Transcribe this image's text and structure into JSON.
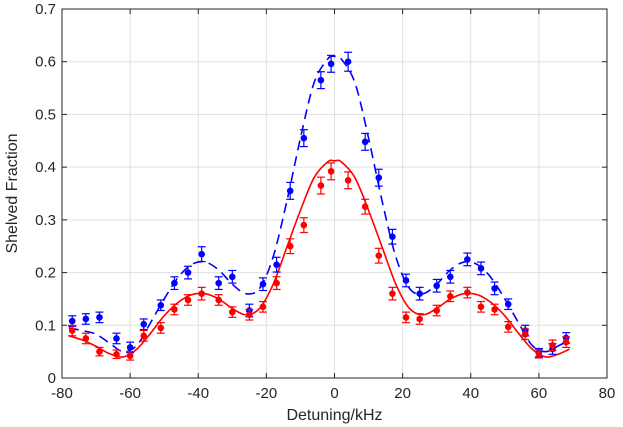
{
  "chart_data": {
    "type": "scatter",
    "title": "",
    "xlabel": "Detuning/kHz",
    "ylabel": "Shelved Fraction",
    "xlim": [
      -80,
      80
    ],
    "ylim": [
      0,
      0.7
    ],
    "xticks": [
      -80,
      -60,
      -40,
      -20,
      0,
      20,
      40,
      60,
      80
    ],
    "yticks": [
      0,
      0.1,
      0.2,
      0.3,
      0.4,
      0.5,
      0.6,
      0.7
    ],
    "xtick_labels": [
      "-80",
      "-60",
      "-40",
      "-20",
      "0",
      "20",
      "40",
      "60",
      "80"
    ],
    "ytick_labels": [
      "0",
      "0.1",
      "0.2",
      "0.3",
      "0.4",
      "0.5",
      "0.6",
      "0.7"
    ],
    "grid": true,
    "legend": "none",
    "series": [
      {
        "color": "#0000ff",
        "marker": "dot",
        "x": [
          -77,
          -73,
          -69,
          -64,
          -60,
          -56,
          -51,
          -47,
          -43,
          -39,
          -34,
          -30,
          -25,
          -21,
          -17,
          -13,
          -9,
          -4,
          -1,
          4,
          9,
          13,
          17,
          21,
          25,
          30,
          34,
          39,
          43,
          47,
          51,
          56,
          60,
          64,
          68
        ],
        "y": [
          0.108,
          0.112,
          0.115,
          0.075,
          0.058,
          0.102,
          0.138,
          0.18,
          0.2,
          0.235,
          0.18,
          0.192,
          0.128,
          0.178,
          0.215,
          0.355,
          0.455,
          0.565,
          0.596,
          0.6,
          0.448,
          0.38,
          0.268,
          0.185,
          0.16,
          0.175,
          0.192,
          0.225,
          0.208,
          0.17,
          0.14,
          0.09,
          0.048,
          0.055,
          0.076
        ],
        "err": [
          0.01,
          0.01,
          0.01,
          0.01,
          0.01,
          0.01,
          0.01,
          0.012,
          0.012,
          0.014,
          0.012,
          0.012,
          0.012,
          0.012,
          0.014,
          0.016,
          0.016,
          0.016,
          0.016,
          0.018,
          0.016,
          0.016,
          0.014,
          0.012,
          0.012,
          0.012,
          0.012,
          0.012,
          0.012,
          0.012,
          0.01,
          0.01,
          0.008,
          0.01,
          0.01
        ]
      },
      {
        "color": "#ff0000",
        "marker": "dot",
        "x": [
          -77,
          -73,
          -69,
          -64,
          -60,
          -56,
          -51,
          -47,
          -43,
          -39,
          -34,
          -30,
          -25,
          -21,
          -17,
          -13,
          -9,
          -4,
          -1,
          4,
          9,
          13,
          17,
          21,
          25,
          30,
          34,
          39,
          43,
          47,
          51,
          56,
          60,
          64,
          68
        ],
        "y": [
          0.09,
          0.075,
          0.05,
          0.045,
          0.042,
          0.08,
          0.095,
          0.13,
          0.148,
          0.16,
          0.148,
          0.125,
          0.12,
          0.135,
          0.18,
          0.25,
          0.29,
          0.365,
          0.392,
          0.375,
          0.325,
          0.232,
          0.16,
          0.115,
          0.112,
          0.128,
          0.155,
          0.162,
          0.135,
          0.13,
          0.097,
          0.083,
          0.046,
          0.062,
          0.068
        ],
        "err": [
          0.01,
          0.01,
          0.008,
          0.008,
          0.008,
          0.01,
          0.01,
          0.01,
          0.01,
          0.012,
          0.01,
          0.01,
          0.01,
          0.01,
          0.012,
          0.014,
          0.014,
          0.016,
          0.016,
          0.016,
          0.014,
          0.014,
          0.012,
          0.01,
          0.01,
          0.01,
          0.01,
          0.01,
          0.01,
          0.01,
          0.01,
          0.01,
          0.008,
          0.01,
          0.01
        ]
      }
    ],
    "fits": [
      {
        "color": "#0000ff",
        "style": "dashed",
        "x": [
          -78,
          -74,
          -70,
          -66,
          -62,
          -58,
          -54,
          -50,
          -46,
          -42,
          -38,
          -34,
          -30,
          -26,
          -22,
          -18,
          -14,
          -10,
          -6,
          -2,
          0,
          2,
          6,
          10,
          14,
          18,
          22,
          26,
          30,
          34,
          38,
          42,
          46,
          50,
          54,
          58,
          62,
          66,
          69
        ],
        "y": [
          0.095,
          0.09,
          0.083,
          0.066,
          0.05,
          0.062,
          0.105,
          0.15,
          0.19,
          0.215,
          0.22,
          0.205,
          0.178,
          0.16,
          0.17,
          0.23,
          0.335,
          0.455,
          0.56,
          0.605,
          0.61,
          0.605,
          0.56,
          0.455,
          0.335,
          0.23,
          0.17,
          0.16,
          0.178,
          0.205,
          0.22,
          0.215,
          0.19,
          0.15,
          0.105,
          0.062,
          0.05,
          0.062,
          0.072
        ]
      },
      {
        "color": "#ff0000",
        "style": "solid",
        "x": [
          -78,
          -74,
          -70,
          -66,
          -62,
          -58,
          -54,
          -50,
          -46,
          -42,
          -38,
          -34,
          -30,
          -26,
          -22,
          -18,
          -14,
          -10,
          -6,
          -2,
          0,
          2,
          6,
          10,
          14,
          18,
          22,
          26,
          30,
          34,
          38,
          42,
          46,
          50,
          54,
          58,
          62,
          66,
          69
        ],
        "y": [
          0.08,
          0.072,
          0.06,
          0.046,
          0.04,
          0.055,
          0.085,
          0.118,
          0.143,
          0.158,
          0.16,
          0.15,
          0.132,
          0.12,
          0.132,
          0.178,
          0.248,
          0.318,
          0.38,
          0.41,
          0.412,
          0.41,
          0.38,
          0.318,
          0.248,
          0.178,
          0.132,
          0.12,
          0.132,
          0.15,
          0.16,
          0.158,
          0.143,
          0.118,
          0.085,
          0.055,
          0.04,
          0.046,
          0.055
        ]
      }
    ]
  }
}
